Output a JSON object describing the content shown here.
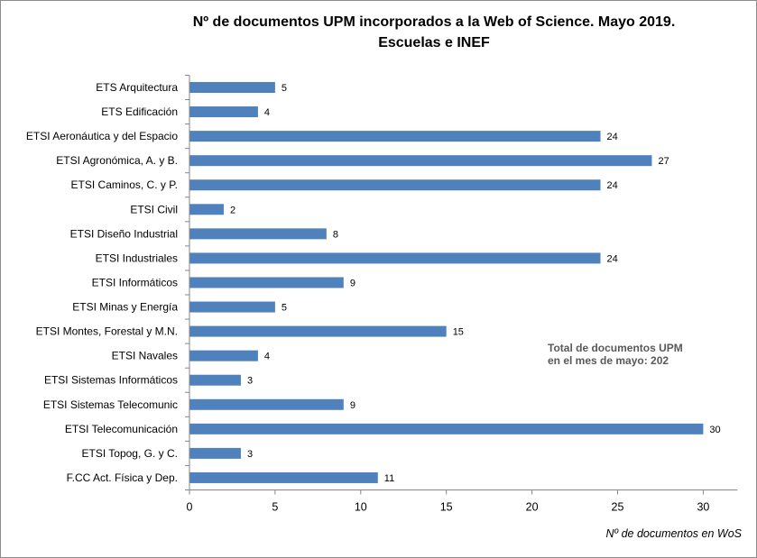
{
  "chart_data": {
    "type": "bar",
    "orientation": "horizontal",
    "title_line1": "Nº de documentos UPM incorporados a la Web of Science. Mayo 2019.",
    "title_line2": "Escuelas e INEF",
    "xlabel": "Nº de documentos en WoS",
    "ylabel": "",
    "xlim": [
      0,
      32
    ],
    "ticks": [
      0,
      5,
      10,
      15,
      20,
      25,
      30
    ],
    "categories": [
      "ETS Arquitectura",
      "ETS Edificación",
      "ETSI Aeronáutica y del Espacio",
      "ETSI Agronómica, A. y B.",
      "ETSI Caminos, C. y P.",
      "ETSI Civil",
      "ETSI Diseño Industrial",
      "ETSI Industriales",
      "ETSI Informáticos",
      "ETSI Minas y Energía",
      "ETSI Montes, Forestal y M.N.",
      "ETSI Navales",
      "ETSI Sistemas Informáticos",
      "ETSI Sistemas Telecomunic",
      "ETSI Telecomunicación",
      "ETSI Topog, G. y C.",
      "F.CC Act. Física y Dep."
    ],
    "values": [
      5,
      4,
      24,
      27,
      24,
      2,
      8,
      24,
      9,
      5,
      15,
      4,
      3,
      9,
      30,
      3,
      11
    ],
    "bar_color": "#4f81bd",
    "annotation_line1": "Total de documentos UPM",
    "annotation_line2": "en el mes de mayo: 202"
  }
}
